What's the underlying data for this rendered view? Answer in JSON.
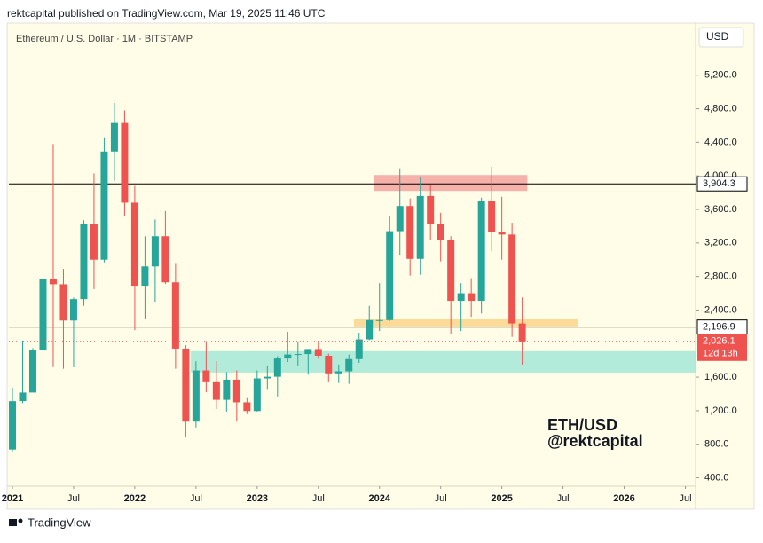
{
  "header": {
    "published": "rektcapital published on TradingView.com, Mar 19, 2025 11:46 UTC",
    "logo": "TradingView"
  },
  "chart_data": {
    "type": "candlestick",
    "title": "Ethereum / U.S. Dollar · 1M · BITSTAMP",
    "currency": "USD",
    "watermark": [
      "ETH/USD",
      "@rektcapital"
    ],
    "up_color": "#26a69a",
    "down_color": "#ef5350",
    "categories": [
      "2021-01",
      "2021-02",
      "2021-03",
      "2021-04",
      "2021-05",
      "2021-06",
      "2021-07",
      "2021-08",
      "2021-09",
      "2021-10",
      "2021-11",
      "2021-12",
      "2022-01",
      "2022-02",
      "2022-03",
      "2022-04",
      "2022-05",
      "2022-06",
      "2022-07",
      "2022-08",
      "2022-09",
      "2022-10",
      "2022-11",
      "2022-12",
      "2023-01",
      "2023-02",
      "2023-03",
      "2023-04",
      "2023-05",
      "2023-06",
      "2023-07",
      "2023-08",
      "2023-09",
      "2023-10",
      "2023-11",
      "2023-12",
      "2024-01",
      "2024-02",
      "2024-03",
      "2024-04",
      "2024-05",
      "2024-06",
      "2024-07",
      "2024-08",
      "2024-09",
      "2024-10",
      "2024-11",
      "2024-12",
      "2025-01",
      "2025-02",
      "2025-03"
    ],
    "open": [
      737,
      1314,
      1417,
      1918,
      2772,
      2707,
      2275,
      2530,
      3430,
      3000,
      4290,
      4630,
      3680,
      2690,
      2920,
      3280,
      2730,
      1940,
      1070,
      1680,
      1550,
      1330,
      1570,
      1300,
      1196,
      1585,
      1605,
      1822,
      1870,
      1875,
      1935,
      1855,
      1645,
      1670,
      1815,
      2050,
      2280,
      2280,
      3340,
      3640,
      3010,
      3760,
      3430,
      3230,
      2510,
      2600,
      2510,
      3700,
      3330,
      3300,
      2240
    ],
    "high": [
      1475,
      2036,
      1947,
      2800,
      4380,
      2890,
      2550,
      3470,
      4030,
      4460,
      4870,
      4780,
      3880,
      3280,
      3480,
      3580,
      2960,
      1980,
      1790,
      2030,
      1790,
      1660,
      1680,
      1350,
      1680,
      1740,
      1850,
      2140,
      2020,
      1930,
      2030,
      1880,
      1750,
      1870,
      2130,
      2450,
      2720,
      3520,
      4090,
      3730,
      3980,
      3890,
      3560,
      3280,
      2720,
      2780,
      3740,
      4110,
      3750,
      3440,
      2550
    ],
    "low": [
      715,
      1290,
      1440,
      1930,
      1720,
      1700,
      1718,
      2450,
      2650,
      2970,
      3940,
      3520,
      2160,
      2300,
      2500,
      2710,
      1700,
      880,
      1000,
      1420,
      1220,
      1190,
      1070,
      1160,
      1190,
      1460,
      1370,
      1780,
      1740,
      1630,
      1820,
      1550,
      1530,
      1520,
      1770,
      2040,
      2150,
      2270,
      3060,
      2810,
      2820,
      3240,
      2980,
      2120,
      2150,
      2320,
      2360,
      3100,
      3000,
      2080,
      1750
    ],
    "close": [
      1314,
      1417,
      1918,
      2772,
      2707,
      2275,
      2530,
      3430,
      3000,
      4290,
      4630,
      3680,
      2690,
      2920,
      3280,
      2730,
      1940,
      1070,
      1680,
      1550,
      1330,
      1570,
      1300,
      1196,
      1585,
      1605,
      1822,
      1870,
      1875,
      1935,
      1855,
      1645,
      1670,
      1815,
      2050,
      2280,
      2280,
      3340,
      3640,
      3010,
      3760,
      3430,
      3230,
      2510,
      2600,
      2510,
      3700,
      3330,
      3300,
      2240,
      2026
    ],
    "xlim": [
      "2021-01",
      "2026-08"
    ],
    "xticks": [
      {
        "value": "2021-01",
        "label": "2021"
      },
      {
        "value": "2021-07",
        "label": "Jul"
      },
      {
        "value": "2022-01",
        "label": "2022"
      },
      {
        "value": "2022-07",
        "label": "Jul"
      },
      {
        "value": "2023-01",
        "label": "2023"
      },
      {
        "value": "2023-07",
        "label": "Jul"
      },
      {
        "value": "2024-01",
        "label": "2024"
      },
      {
        "value": "2024-07",
        "label": "Jul"
      },
      {
        "value": "2025-01",
        "label": "2025"
      },
      {
        "value": "2025-07",
        "label": "Jul"
      },
      {
        "value": "2026-01",
        "label": "2026"
      },
      {
        "value": "2026-07",
        "label": "Jul"
      }
    ],
    "ylim": [
      300,
      5800
    ],
    "yticks": [
      {
        "value": 400,
        "label": "400.0"
      },
      {
        "value": 800,
        "label": "800.0"
      },
      {
        "value": 1200,
        "label": "1,200.0"
      },
      {
        "value": 1600,
        "label": "1,600.0"
      },
      {
        "value": 2400,
        "label": "2,400.0"
      },
      {
        "value": 2800,
        "label": "2,800.0"
      },
      {
        "value": 3200,
        "label": "3,200.0"
      },
      {
        "value": 3600,
        "label": "3,600.0"
      },
      {
        "value": 4000,
        "label": "4,000.0"
      },
      {
        "value": 4400,
        "label": "4,400.0"
      },
      {
        "value": 4800,
        "label": "4,800.0"
      },
      {
        "value": 5200,
        "label": "5,200.0"
      }
    ],
    "lines": [
      {
        "value": 3904.3,
        "label": "3,904.3",
        "color": "#000000"
      },
      {
        "value": 2196.9,
        "label": "2,196.9",
        "color": "#000000"
      }
    ],
    "last_price": {
      "value": 2026.1,
      "label": "2,026.1",
      "countdown": "12d 13h",
      "color": "#ef5350"
    },
    "zones": [
      {
        "start": "2024-01",
        "end": "2025-03",
        "low": 3820,
        "high": 4010,
        "color": "#f4a3a0"
      },
      {
        "start": "2023-11",
        "end": "2025-08",
        "low": 2205,
        "high": 2290,
        "color": "#fbd58a"
      },
      {
        "start": "2022-07",
        "end": "2026-08",
        "low": 1655,
        "high": 1910,
        "color": "#a5e8d6"
      }
    ]
  }
}
